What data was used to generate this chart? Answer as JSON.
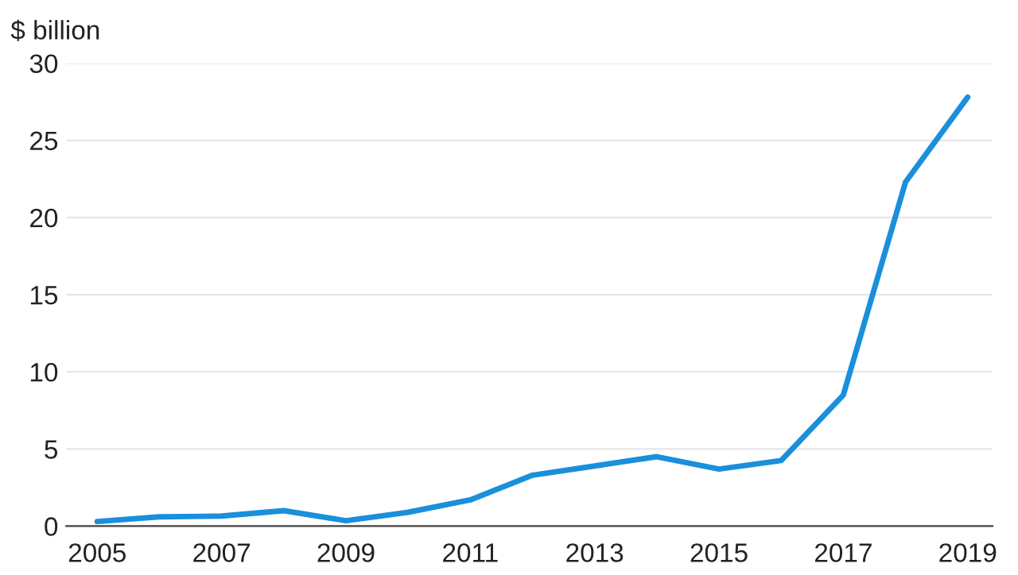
{
  "chart_data": {
    "type": "line",
    "ylabel": "$ billion",
    "x": [
      2005,
      2006,
      2007,
      2008,
      2009,
      2010,
      2011,
      2012,
      2013,
      2014,
      2015,
      2016,
      2017,
      2018,
      2019
    ],
    "series": [
      {
        "color": "#1a8fdc",
        "values": [
          0.3,
          0.6,
          0.65,
          1.0,
          0.35,
          0.9,
          1.7,
          3.3,
          3.9,
          4.5,
          3.7,
          4.25,
          8.5,
          22.3,
          27.8
        ]
      }
    ],
    "xlim": [
      2004.5,
      2019.4
    ],
    "xticks": [
      2005,
      2007,
      2009,
      2011,
      2013,
      2015,
      2017,
      2019
    ],
    "ylim": [
      0,
      30
    ],
    "yticks": [
      0,
      5,
      10,
      15,
      20,
      25,
      30
    ],
    "grid": "y",
    "legend": false,
    "marker": "none",
    "line_style": "solid"
  }
}
